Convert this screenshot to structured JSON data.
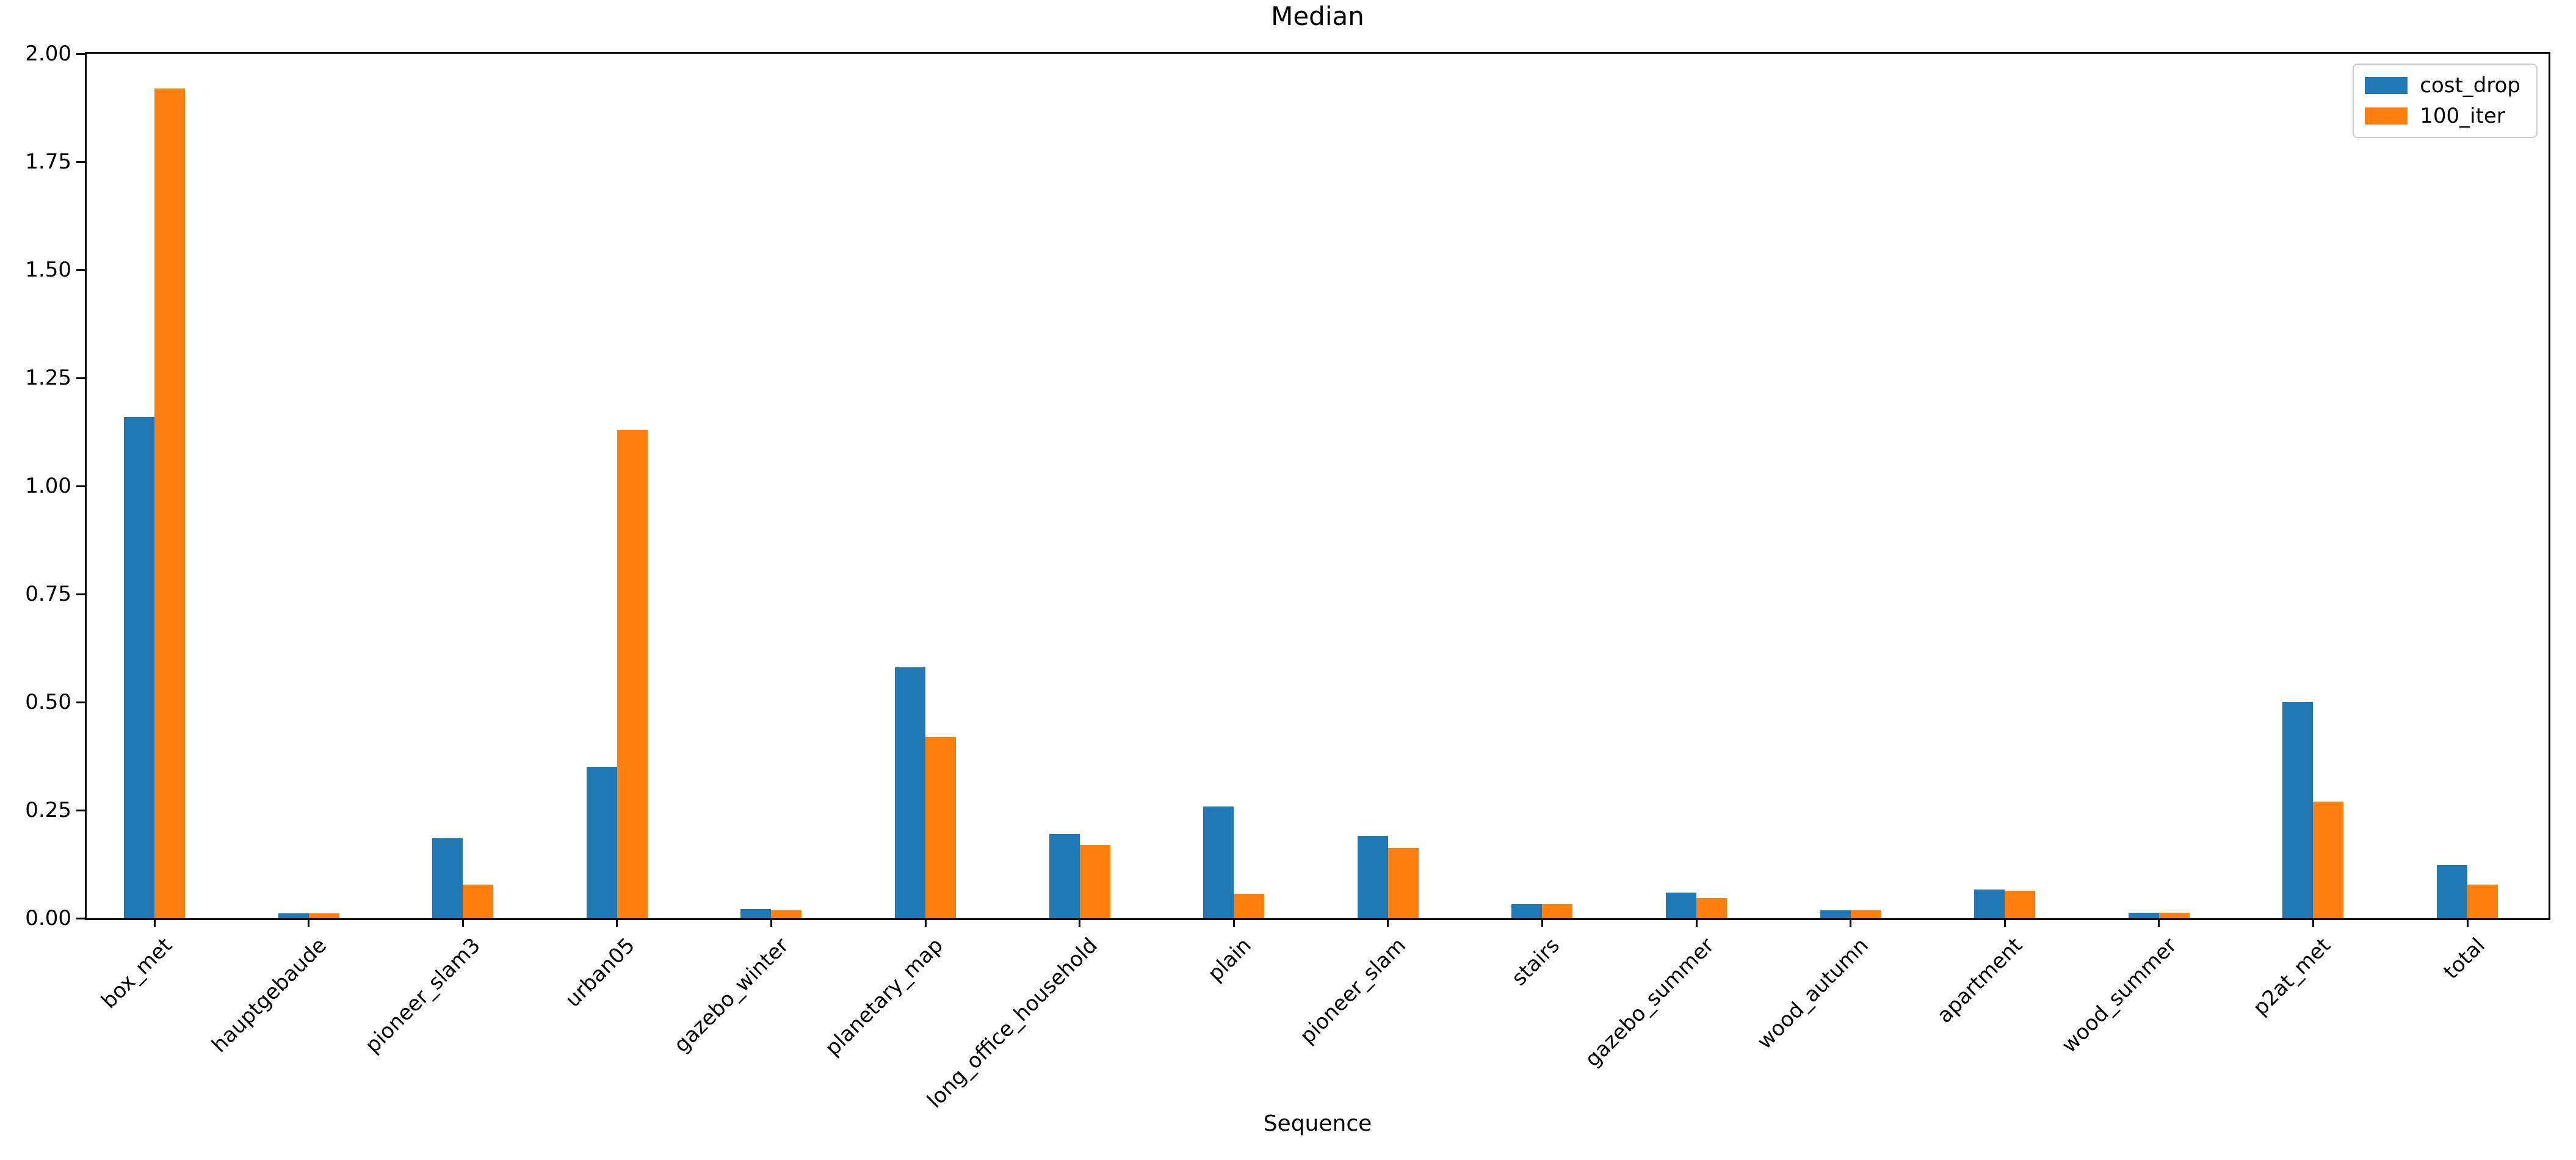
{
  "chart_data": {
    "type": "bar",
    "title": "Median",
    "xlabel": "Sequence",
    "ylabel": "",
    "grid": false,
    "legend_position": "upper right",
    "xtick_rotation": 45,
    "ylim": [
      0,
      2.0
    ],
    "yticks": [
      0,
      0.25,
      0.5,
      0.75,
      1.0,
      1.25,
      1.5,
      1.75,
      2.0
    ],
    "ytick_labels": [
      "0.00",
      "0.25",
      "0.50",
      "0.75",
      "1.00",
      "1.25",
      "1.50",
      "1.75",
      "2.00"
    ],
    "categories": [
      "box_met",
      "hauptgebaude",
      "pioneer_slam3",
      "urban05",
      "gazebo_winter",
      "planetary_map",
      "long_office_household",
      "plain",
      "pioneer_slam",
      "stairs",
      "gazebo_summer",
      "wood_autumn",
      "apartment",
      "wood_summer",
      "p2at_met",
      "total"
    ],
    "series": [
      {
        "name": "cost_drop",
        "color": "#1f77b4",
        "values": [
          1.16,
          0.012,
          0.185,
          0.35,
          0.021,
          0.58,
          0.195,
          0.258,
          0.19,
          0.032,
          0.06,
          0.018,
          0.067,
          0.013,
          0.5,
          0.123
        ]
      },
      {
        "name": "100_iter",
        "color": "#ff7f0e",
        "values": [
          1.92,
          0.012,
          0.078,
          1.13,
          0.018,
          0.42,
          0.17,
          0.056,
          0.163,
          0.032,
          0.047,
          0.018,
          0.064,
          0.013,
          0.27,
          0.077
        ]
      }
    ]
  }
}
